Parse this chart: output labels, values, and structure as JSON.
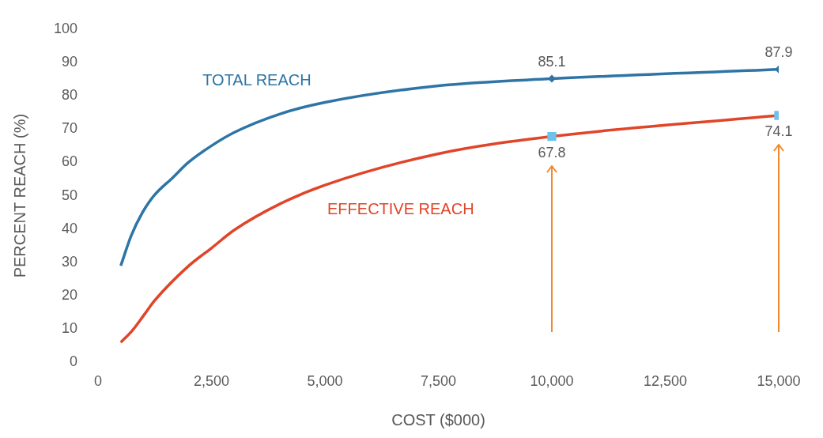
{
  "chart_data": {
    "type": "line",
    "xlabel": "COST ($000)",
    "ylabel": "PERCENT REACH (%)",
    "xlim": [
      0,
      15000
    ],
    "xticks": [
      0,
      {
        "value": 2500,
        "label": "2,500"
      },
      {
        "value": 5000,
        "label": "5,000"
      },
      {
        "value": 7500,
        "label": "7,500"
      },
      {
        "value": 10000,
        "label": "10,000"
      },
      {
        "value": 12500,
        "label": "12,500"
      },
      {
        "value": 15000,
        "label": "15,000"
      }
    ],
    "ylim": [
      0,
      100
    ],
    "yticks": [
      0,
      10,
      20,
      30,
      40,
      50,
      60,
      70,
      80,
      90,
      100
    ],
    "grid": false,
    "legend": false,
    "series": [
      {
        "name": "TOTAL REACH",
        "color": "#2e75a6",
        "x": [
          500,
          730,
          980,
          1230,
          1650,
          1990,
          2500,
          3000,
          4000,
          5000,
          7500,
          10000,
          15000
        ],
        "values": [
          29,
          38,
          45,
          50,
          55.5,
          60,
          65,
          69,
          74.5,
          78,
          83,
          85.1,
          87.9
        ],
        "value_labels": [
          null,
          null,
          null,
          null,
          null,
          null,
          null,
          null,
          null,
          null,
          null,
          "85.1",
          "87.9"
        ]
      },
      {
        "name": "EFFECTIVE REACH",
        "color": "#e0452a",
        "x": [
          500,
          750,
          1000,
          1250,
          2000,
          2500,
          3000,
          4000,
          5000,
          7500,
          10000,
          15000
        ],
        "values": [
          6,
          9.5,
          14,
          18.6,
          29,
          34.3,
          39.7,
          47.5,
          53.2,
          62.6,
          67.8,
          74.1
        ],
        "value_labels": [
          null,
          null,
          null,
          null,
          null,
          null,
          null,
          null,
          null,
          null,
          "67.8",
          "74.1"
        ]
      }
    ]
  }
}
